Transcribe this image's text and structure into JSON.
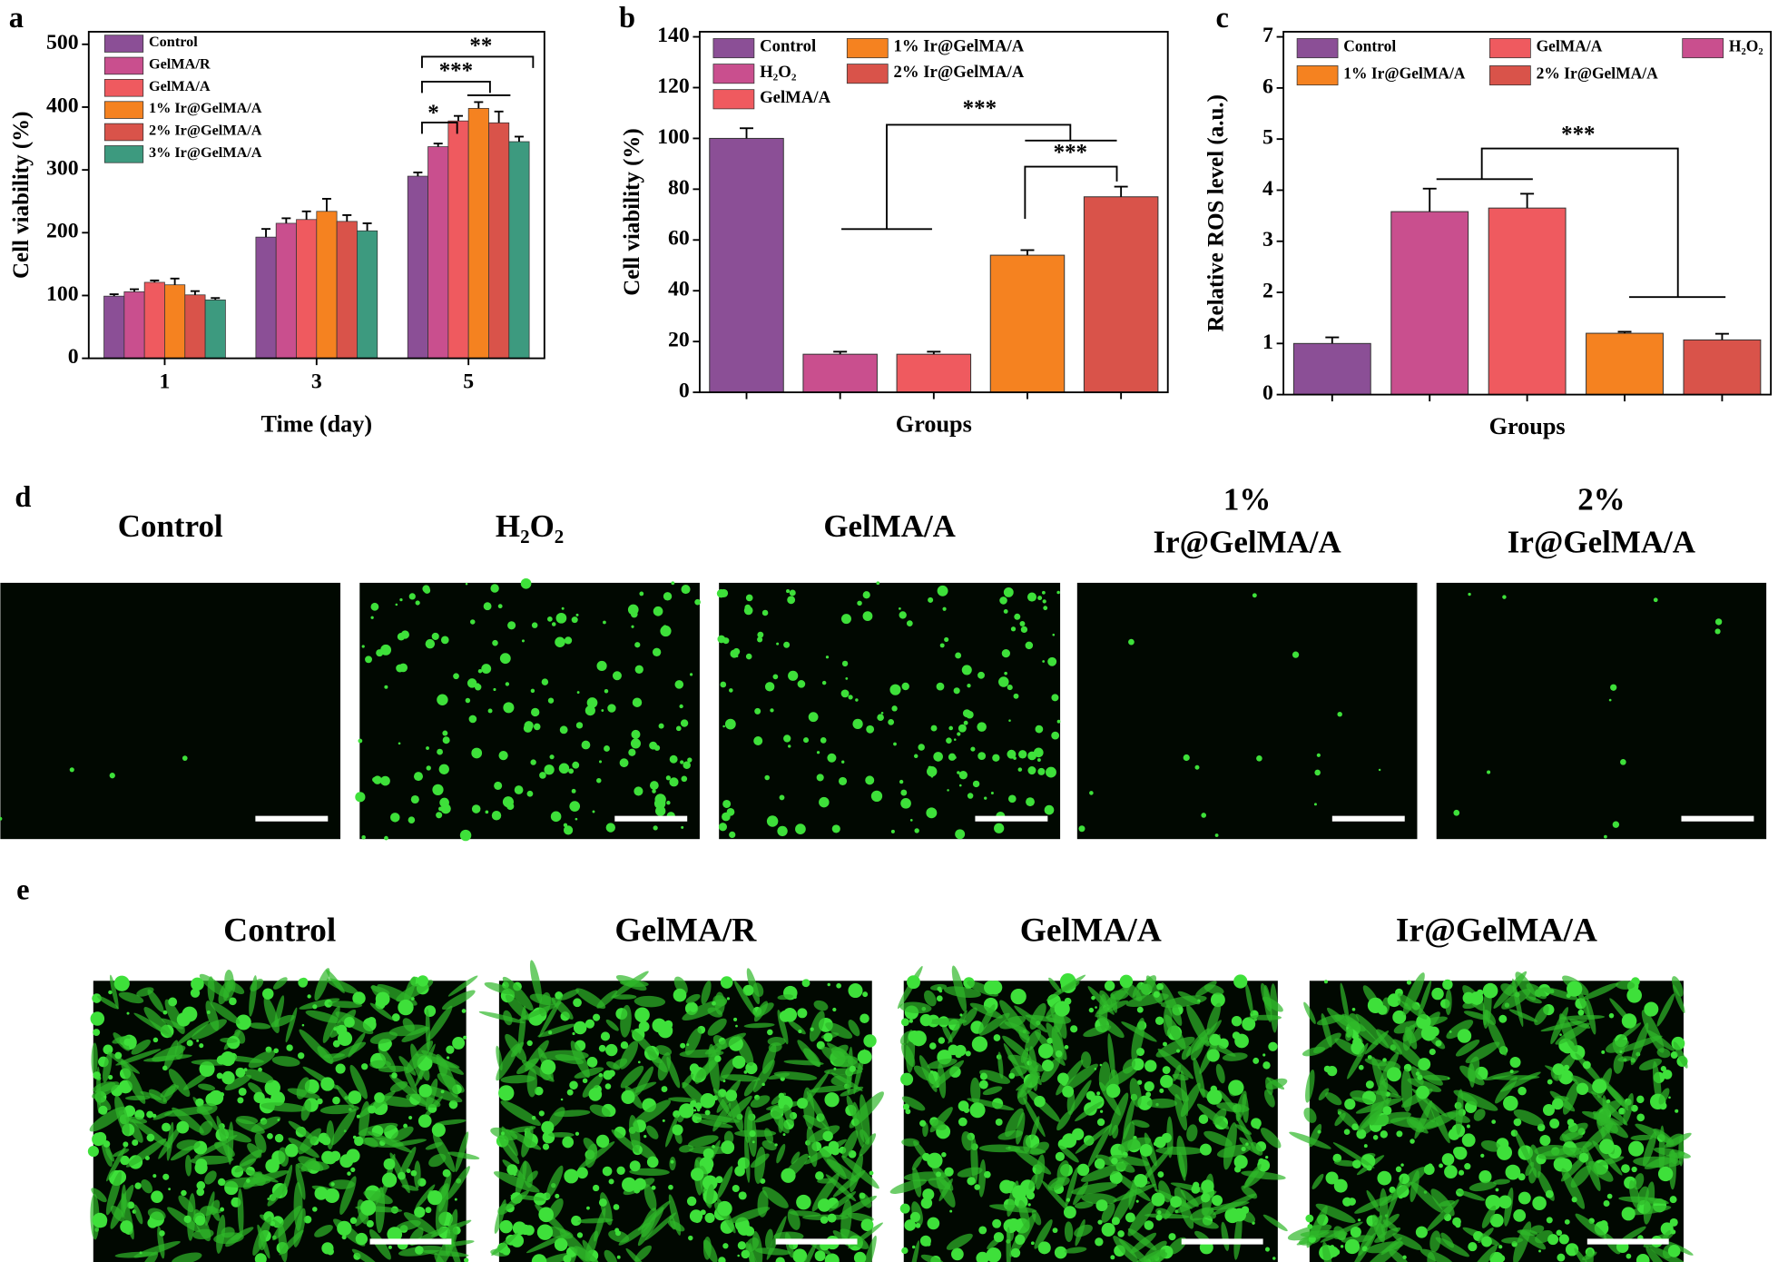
{
  "chart_data": [
    {
      "type": "grouped-bar",
      "panel_label": "a",
      "x_label": "Time (day)",
      "y_label": "Cell viability (%)",
      "categories": [
        "1",
        "3",
        "5"
      ],
      "ylim": [
        0,
        520
      ],
      "yticks": [
        0,
        100,
        200,
        300,
        400,
        500
      ],
      "series": [
        {
          "name": "Control",
          "color": "#8b4f96",
          "values": [
            99,
            193,
            290
          ],
          "errors": [
            3,
            13,
            6
          ]
        },
        {
          "name": "GelMA/R",
          "color": "#c94f8e",
          "values": [
            106,
            215,
            337
          ],
          "errors": [
            4,
            8,
            5
          ]
        },
        {
          "name": "GelMA/A",
          "color": "#ef5a5f",
          "values": [
            121,
            221,
            378
          ],
          "errors": [
            3,
            13,
            8
          ]
        },
        {
          "name": "1% Ir@GelMA/A",
          "color": "#f58220",
          "values": [
            117,
            234,
            398
          ],
          "errors": [
            10,
            20,
            10
          ]
        },
        {
          "name": "2% Ir@GelMA/A",
          "color": "#d9534a",
          "values": [
            101,
            218,
            375
          ],
          "errors": [
            6,
            10,
            18
          ]
        },
        {
          "name": "3% Ir@GelMA/A",
          "color": "#3d9a7f",
          "values": [
            93,
            203,
            345
          ],
          "errors": [
            3,
            12,
            8
          ]
        }
      ],
      "annotations": [
        "*",
        "***",
        "**"
      ]
    },
    {
      "type": "bar",
      "panel_label": "b",
      "x_label": "Groups",
      "y_label": "Cell viability (%)",
      "categories": [
        "Control",
        "H₂O₂",
        "GelMA/A",
        "1% Ir@GelMA/A",
        "2% Ir@GelMA/A"
      ],
      "colors": [
        "#8b4f96",
        "#c94f8e",
        "#ef5a5f",
        "#f58220",
        "#d9534a"
      ],
      "values": [
        100,
        15,
        15,
        54,
        77
      ],
      "errors": [
        4,
        1,
        1,
        2,
        4
      ],
      "ylim": [
        0,
        142
      ],
      "yticks": [
        0,
        20,
        40,
        60,
        80,
        100,
        120,
        140
      ],
      "annotations": [
        "***",
        "***"
      ]
    },
    {
      "type": "bar",
      "panel_label": "c",
      "x_label": "Groups",
      "y_label": "Relative ROS level (a.u.)",
      "categories": [
        "Control",
        "H₂O₂",
        "GelMA/A",
        "1% Ir@GelMA/A",
        "2% Ir@GelMA/A"
      ],
      "colors": [
        "#8b4f96",
        "#c94f8e",
        "#ef5a5f",
        "#f58220",
        "#d9534a"
      ],
      "values": [
        1.0,
        3.58,
        3.65,
        1.2,
        1.07
      ],
      "errors": [
        0.12,
        0.45,
        0.28,
        0.03,
        0.12
      ],
      "ylim": [
        0,
        7.1
      ],
      "yticks": [
        0,
        1,
        2,
        3,
        4,
        5,
        6,
        7
      ],
      "annotations": [
        "***"
      ]
    }
  ],
  "panels": {
    "d": {
      "label": "d",
      "titles": [
        [
          "Control"
        ],
        [
          "H₂O₂"
        ],
        [
          "GelMA/A"
        ],
        [
          "1%",
          "Ir@GelMA/A"
        ],
        [
          "2%",
          "Ir@GelMA/A"
        ]
      ]
    },
    "e": {
      "label": "e",
      "titles": [
        "Control",
        "GelMA/R",
        "GelMA/A",
        "Ir@GelMA/A"
      ]
    }
  }
}
